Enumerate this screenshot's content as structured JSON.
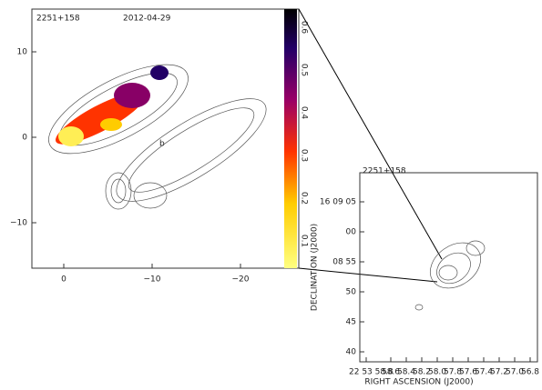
{
  "left_panel": {
    "source": "2251+158",
    "date": "2012-04-29",
    "feature_label": "b",
    "x_ticks": [
      "0",
      "−10",
      "−20"
    ],
    "y_ticks": [
      "10",
      "0",
      "−10"
    ],
    "colorbar_ticks": [
      "0.6",
      "0.5",
      "0.4",
      "0.3",
      "0.2",
      "0.1"
    ]
  },
  "right_panel": {
    "source": "2251+158",
    "y_label": "DECLINATION (J2000)",
    "x_label": "RIGHT ASCENSION (J2000)",
    "y_ticks": [
      "16 09 05",
      "00",
      "08 55",
      "50",
      "45",
      "40"
    ],
    "x_ticks": [
      "22 53 58.8",
      "58.6",
      "58.4",
      "58.2",
      "58.0",
      "57.8",
      "57.6",
      "57.4",
      "57.2",
      "57.0",
      "56.8"
    ]
  }
}
